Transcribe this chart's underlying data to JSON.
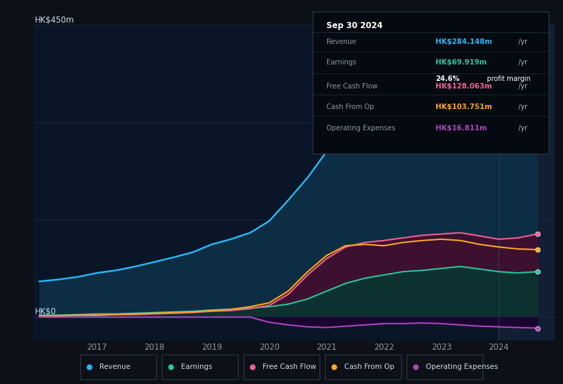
{
  "bg_color": "#0d1117",
  "chart_bg": "#0a1628",
  "title": "Sep 30 2024",
  "ylabel_top": "HK$450m",
  "ylabel_bottom": "HK$0",
  "years": [
    2016.0,
    2016.33,
    2016.67,
    2017.0,
    2017.33,
    2017.67,
    2018.0,
    2018.33,
    2018.67,
    2019.0,
    2019.33,
    2019.67,
    2020.0,
    2020.33,
    2020.67,
    2021.0,
    2021.33,
    2021.67,
    2022.0,
    2022.33,
    2022.67,
    2023.0,
    2023.33,
    2023.67,
    2024.0,
    2024.33,
    2024.67
  ],
  "revenue": [
    55,
    58,
    62,
    68,
    72,
    78,
    85,
    92,
    100,
    112,
    120,
    130,
    148,
    180,
    215,
    255,
    285,
    315,
    340,
    370,
    400,
    425,
    440,
    420,
    380,
    320,
    284
  ],
  "earnings": [
    3,
    3,
    4,
    5,
    5,
    6,
    7,
    8,
    9,
    11,
    12,
    14,
    16,
    20,
    28,
    40,
    52,
    60,
    65,
    70,
    72,
    75,
    78,
    74,
    70,
    68,
    70
  ],
  "free_cash_flow": [
    2,
    2,
    3,
    3,
    4,
    4,
    5,
    6,
    7,
    9,
    10,
    13,
    18,
    35,
    65,
    90,
    108,
    115,
    118,
    122,
    126,
    128,
    130,
    125,
    120,
    122,
    128
  ],
  "cash_from_op": [
    2,
    2,
    3,
    3,
    4,
    5,
    6,
    7,
    8,
    10,
    12,
    16,
    22,
    40,
    70,
    95,
    110,
    112,
    110,
    115,
    118,
    120,
    118,
    112,
    108,
    105,
    104
  ],
  "op_expenses": [
    0,
    0,
    0,
    0,
    0,
    0,
    0,
    0,
    0,
    0,
    0,
    0,
    -8,
    -12,
    -15,
    -16,
    -14,
    -12,
    -10,
    -10,
    -9,
    -10,
    -12,
    -14,
    -15,
    -16,
    -17
  ],
  "colors": {
    "revenue": "#29b6f6",
    "earnings": "#26c6a0",
    "free_cash_flow": "#f06292",
    "cash_from_op": "#ffa726",
    "op_expenses": "#ab47bc"
  },
  "fill_revenue": "#0d2d44",
  "fill_earnings": "#0d3030",
  "fill_fcf": "#3d1030",
  "fill_cfop": "#3d2800",
  "fill_opex": "#1a0530",
  "xtick_labels": [
    "2017",
    "2018",
    "2019",
    "2020",
    "2021",
    "2022",
    "2023",
    "2024"
  ],
  "xtick_positions": [
    2017.0,
    2018.0,
    2019.0,
    2020.0,
    2021.0,
    2022.0,
    2023.0,
    2024.0
  ],
  "legend": [
    {
      "label": "Revenue",
      "color": "#29b6f6"
    },
    {
      "label": "Earnings",
      "color": "#26c6a0"
    },
    {
      "label": "Free Cash Flow",
      "color": "#f06292"
    },
    {
      "label": "Cash From Op",
      "color": "#ffa726"
    },
    {
      "label": "Operating Expenses",
      "color": "#ab47bc"
    }
  ],
  "info_label_color": "#8899aa",
  "info_value_colors": {
    "Revenue": "#29b6f6",
    "Earnings": "#26c6a0",
    "Free Cash Flow": "#f06292",
    "Cash From Op": "#ffa726",
    "Operating Expenses": "#ab47bc"
  }
}
